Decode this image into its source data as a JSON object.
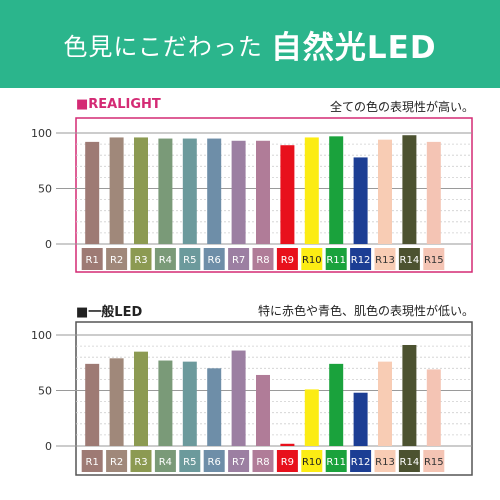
{
  "banner": {
    "text_main": "色見にこだわった",
    "text_accent": "自然光LED",
    "bg_color": "#2bb58c"
  },
  "chart_data": [
    {
      "type": "bar",
      "title": "■REALIGHT",
      "subtitle": "全ての色の表現性が高い。",
      "title_color": "#d42a74",
      "frame_color": "#d42a74",
      "categories": [
        "R1",
        "R2",
        "R3",
        "R4",
        "R5",
        "R6",
        "R7",
        "R8",
        "R9",
        "R10",
        "R11",
        "R12",
        "R13",
        "R14",
        "R15"
      ],
      "values": [
        92,
        96,
        96,
        95,
        95,
        95,
        93,
        93,
        89,
        96,
        97,
        78,
        94,
        98,
        92
      ],
      "ylim": [
        0,
        100
      ],
      "yticks": [
        "100",
        "50",
        "0"
      ],
      "grid": true
    },
    {
      "type": "bar",
      "title": "■一般LED",
      "subtitle": "特に赤色や青色、肌色の表現性が低い。",
      "title_color": "#222222",
      "frame_color": "#555555",
      "categories": [
        "R1",
        "R2",
        "R3",
        "R4",
        "R5",
        "R6",
        "R7",
        "R8",
        "R9",
        "R10",
        "R11",
        "R12",
        "R13",
        "R14",
        "R15"
      ],
      "values": [
        74,
        79,
        85,
        77,
        76,
        70,
        86,
        64,
        2,
        51,
        74,
        48,
        76,
        91,
        69
      ],
      "ylim": [
        0,
        100
      ],
      "yticks": [
        "100",
        "50",
        "0"
      ],
      "grid": true
    }
  ],
  "bar_colors": [
    "#9e7a74",
    "#a0887a",
    "#8c9a52",
    "#7a9a78",
    "#6c9a9c",
    "#6e8ea8",
    "#9c7fa2",
    "#b07c98",
    "#e8101c",
    "#fcec14",
    "#1aa23c",
    "#1c3e94",
    "#f8ccb4",
    "#4c5230",
    "#f4c4b4"
  ],
  "label_bg": [
    "#9e7a74",
    "#a0887a",
    "#8c9a52",
    "#7a9a78",
    "#6c9a9c",
    "#6e8ea8",
    "#9c7fa2",
    "#b07c98",
    "#e8101c",
    "#fcec14",
    "#1aa23c",
    "#1c3e94",
    "#f8ccb4",
    "#4c5230",
    "#f4c4b4"
  ],
  "label_fg": [
    "#ffffff",
    "#ffffff",
    "#ffffff",
    "#ffffff",
    "#ffffff",
    "#ffffff",
    "#ffffff",
    "#ffffff",
    "#ffffff",
    "#222222",
    "#ffffff",
    "#ffffff",
    "#333333",
    "#ffffff",
    "#333333"
  ]
}
